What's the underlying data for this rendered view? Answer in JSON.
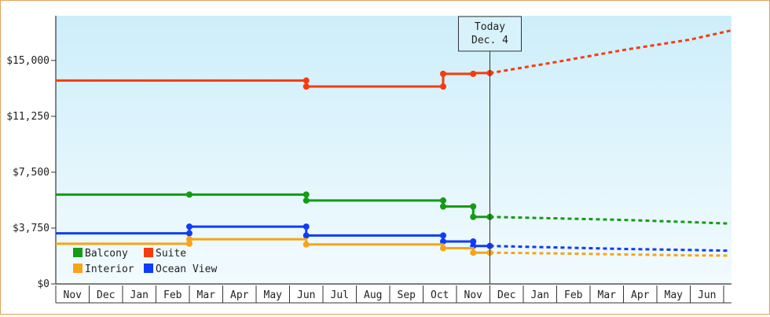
{
  "chart_data": {
    "type": "line",
    "title": "",
    "xlabel": "",
    "ylabel": "",
    "ylim": [
      0,
      18000
    ],
    "y_ticks": [
      0,
      3750,
      7500,
      11250,
      15000
    ],
    "y_tick_labels": [
      "$0",
      "$3,750",
      "$7,500",
      "$11,250",
      "$15,000"
    ],
    "x_tick_labels": [
      "Nov",
      "Dec",
      "Jan",
      "Feb",
      "Mar",
      "Apr",
      "May",
      "Jun",
      "Jul",
      "Aug",
      "Sep",
      "Oct",
      "Nov",
      "Dec",
      "Jan",
      "Feb",
      "Mar",
      "Apr",
      "May",
      "Jun"
    ],
    "today_marker": {
      "line1": "Today",
      "line2": "Dec. 4",
      "x": 13.0
    },
    "legend_placement": "bottom-left",
    "background_gradient": [
      "#cdeefa",
      "#f2fbfe"
    ],
    "series": [
      {
        "name": "Suite",
        "color": "#f53c10",
        "points": [
          [
            0,
            13650
          ],
          [
            7.5,
            13650
          ],
          [
            7.5,
            13250
          ],
          [
            11.6,
            13250
          ],
          [
            11.6,
            14100
          ],
          [
            12.5,
            14100
          ],
          [
            12.5,
            14150
          ],
          [
            13.0,
            14150
          ]
        ],
        "markers": [
          [
            7.5,
            13650
          ],
          [
            7.5,
            13250
          ],
          [
            11.6,
            13250
          ],
          [
            11.6,
            14100
          ],
          [
            12.5,
            14100
          ],
          [
            13.0,
            14150
          ]
        ],
        "forecast": [
          [
            13.0,
            14150
          ],
          [
            15,
            14900
          ],
          [
            17,
            15700
          ],
          [
            19,
            16400
          ],
          [
            20.2,
            17000
          ]
        ]
      },
      {
        "name": "Balcony",
        "color": "#159b15",
        "points": [
          [
            0,
            6000
          ],
          [
            4.0,
            6000
          ],
          [
            7.5,
            6000
          ],
          [
            7.5,
            5600
          ],
          [
            11.6,
            5600
          ],
          [
            11.6,
            5200
          ],
          [
            12.5,
            5200
          ],
          [
            12.5,
            4500
          ],
          [
            13.0,
            4500
          ]
        ],
        "markers": [
          [
            4.0,
            6000
          ],
          [
            7.5,
            6000
          ],
          [
            7.5,
            5600
          ],
          [
            11.6,
            5600
          ],
          [
            11.6,
            5200
          ],
          [
            12.5,
            5200
          ],
          [
            12.5,
            4500
          ],
          [
            13.0,
            4500
          ]
        ],
        "forecast": [
          [
            13.0,
            4500
          ],
          [
            15,
            4400
          ],
          [
            17,
            4300
          ],
          [
            19,
            4150
          ],
          [
            20.2,
            4050
          ]
        ]
      },
      {
        "name": "Ocean View",
        "color": "#0f3cf5",
        "points": [
          [
            0,
            3400
          ],
          [
            4.0,
            3400
          ],
          [
            4.0,
            3850
          ],
          [
            7.5,
            3850
          ],
          [
            7.5,
            3250
          ],
          [
            11.6,
            3250
          ],
          [
            11.6,
            2850
          ],
          [
            12.5,
            2850
          ],
          [
            12.5,
            2550
          ],
          [
            13.0,
            2550
          ]
        ],
        "markers": [
          [
            4.0,
            3400
          ],
          [
            4.0,
            3850
          ],
          [
            7.5,
            3850
          ],
          [
            7.5,
            3250
          ],
          [
            11.6,
            3250
          ],
          [
            11.6,
            2850
          ],
          [
            12.5,
            2850
          ],
          [
            12.5,
            2550
          ],
          [
            13.0,
            2550
          ]
        ],
        "forecast": [
          [
            13.0,
            2550
          ],
          [
            15,
            2450
          ],
          [
            17,
            2350
          ],
          [
            19,
            2280
          ],
          [
            20.2,
            2230
          ]
        ]
      },
      {
        "name": "Interior",
        "color": "#f7a418",
        "points": [
          [
            0,
            2700
          ],
          [
            4.0,
            2700
          ],
          [
            4.0,
            3000
          ],
          [
            7.5,
            3000
          ],
          [
            7.5,
            2650
          ],
          [
            11.6,
            2650
          ],
          [
            11.6,
            2400
          ],
          [
            12.5,
            2400
          ],
          [
            12.5,
            2100
          ],
          [
            13.0,
            2100
          ]
        ],
        "markers": [
          [
            4.0,
            2700
          ],
          [
            4.0,
            3000
          ],
          [
            7.5,
            2650
          ],
          [
            11.6,
            2400
          ],
          [
            12.5,
            2100
          ],
          [
            13.0,
            2100
          ]
        ],
        "forecast": [
          [
            13.0,
            2100
          ],
          [
            15,
            2050
          ],
          [
            17,
            1980
          ],
          [
            19,
            1920
          ],
          [
            20.2,
            1900
          ]
        ]
      }
    ],
    "legend": [
      {
        "name": "Balcony",
        "color": "#159b15"
      },
      {
        "name": "Suite",
        "color": "#f53c10"
      },
      {
        "name": "Interior",
        "color": "#f7a418"
      },
      {
        "name": "Ocean View",
        "color": "#0f3cf5"
      }
    ]
  }
}
